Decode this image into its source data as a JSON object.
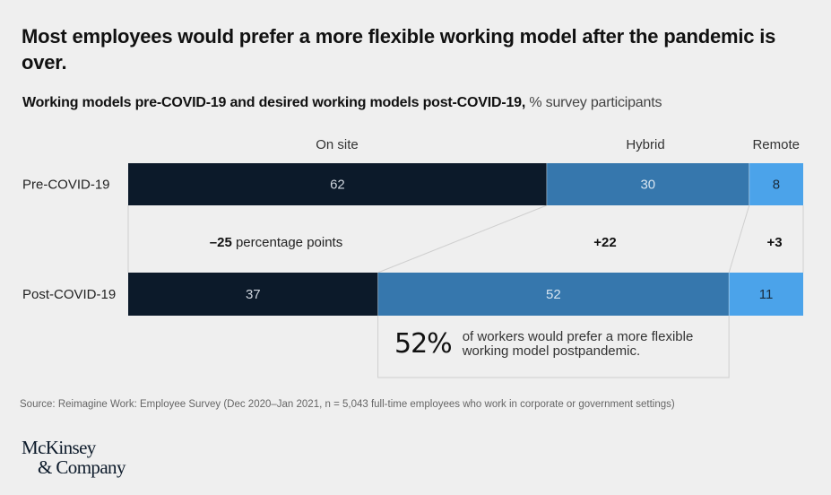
{
  "title": "Most employees would prefer a more flexible working model after the pandemic is over.",
  "subtitle": {
    "bold": "Working models pre-COVID-19 and desired working models post-COVID-19,",
    "light": "% survey participants"
  },
  "chart_data": {
    "type": "bar",
    "orientation": "horizontal-stacked",
    "title": "Working models pre-COVID-19 and desired working models post-COVID-19, % survey participants",
    "unit": "% survey participants",
    "xlim": [
      0,
      100
    ],
    "categories": [
      "Pre-COVID-19",
      "Post-COVID-19"
    ],
    "series": [
      {
        "name": "On site",
        "values": [
          62,
          37
        ],
        "color": "#0c1a2a",
        "label_color": "#d0d6de"
      },
      {
        "name": "Hybrid",
        "values": [
          30,
          52
        ],
        "color": "#3677ad",
        "label_color": "#d6e4f0"
      },
      {
        "name": "Remote",
        "values": [
          8,
          11
        ],
        "color": "#4ba3ea",
        "label_color": "#1a2b3c"
      }
    ],
    "changes": [
      {
        "series": "On site",
        "bold": "–25",
        "suffix": " percentage points"
      },
      {
        "series": "Hybrid",
        "bold": "+22",
        "suffix": ""
      },
      {
        "series": "Remote",
        "bold": "+3",
        "suffix": ""
      }
    ],
    "grid": false,
    "legend": "top (series names above columns)"
  },
  "callout": {
    "big": "52%",
    "text_line1": "of workers would prefer a more flexible",
    "text_line2": "working model postpandemic."
  },
  "source": "Source: Reimagine Work: Employee Survey (Dec 2020–Jan 2021, n = 5,043 full-time employees who work in corporate or government settings)",
  "logo": {
    "line1": "McKinsey",
    "line2": "& Company"
  }
}
